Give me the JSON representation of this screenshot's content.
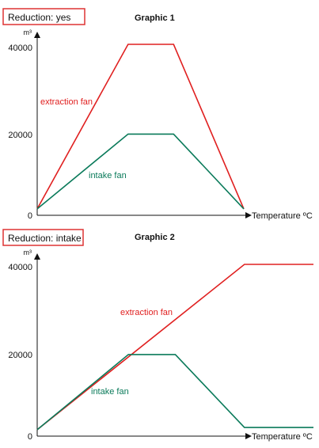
{
  "chart_data": [
    {
      "type": "line",
      "badge": "Reduction: yes",
      "title": "Graphic 1",
      "ylabel": "m³",
      "xlabel": "Temperature ºC",
      "yticks": [
        {
          "value": 0,
          "label": "0"
        },
        {
          "value": 20000,
          "label": "20000"
        },
        {
          "value": 40000,
          "label": "40000"
        }
      ],
      "ylim": [
        0,
        40000
      ],
      "xlim": [
        0,
        100
      ],
      "series": [
        {
          "name": "extraction fan",
          "color": "#e02020",
          "x": [
            0,
            44,
            66,
            100
          ],
          "y": [
            1500,
            40000,
            40000,
            1500
          ]
        },
        {
          "name": "intake fan",
          "color": "#0a7a5a",
          "x": [
            0,
            44,
            66,
            100
          ],
          "y": [
            1500,
            19000,
            19000,
            1500
          ]
        }
      ]
    },
    {
      "type": "line",
      "badge": "Reduction: intake",
      "title": "Graphic 2",
      "ylabel": "m³",
      "xlabel": "Temperature ºC",
      "yticks": [
        {
          "value": 0,
          "label": "0"
        },
        {
          "value": 20000,
          "label": "20000"
        },
        {
          "value": 40000,
          "label": "40000"
        }
      ],
      "ylim": [
        0,
        40000
      ],
      "xlim": [
        0,
        100
      ],
      "series": [
        {
          "name": "extraction fan",
          "color": "#e02020",
          "x": [
            0,
            75,
            100
          ],
          "y": [
            1500,
            40000,
            40000
          ]
        },
        {
          "name": "intake fan",
          "color": "#0a7a5a",
          "x": [
            0,
            33,
            50,
            75,
            100
          ],
          "y": [
            1500,
            19000,
            19000,
            2000,
            2000
          ]
        }
      ]
    }
  ]
}
